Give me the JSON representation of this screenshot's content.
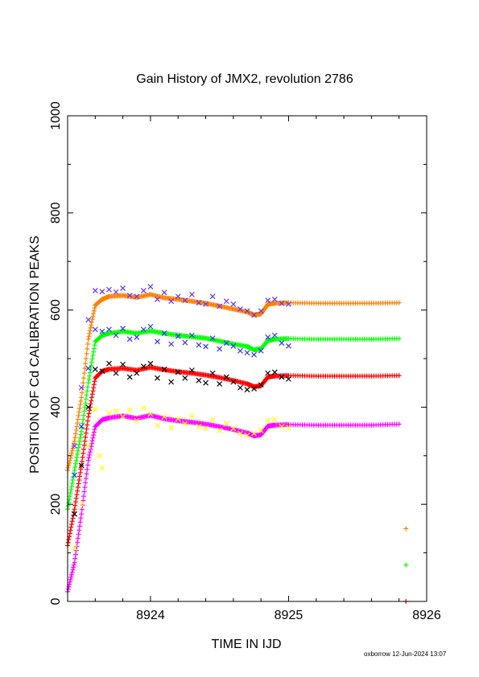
{
  "chart_data": {
    "type": "scatter",
    "title": "Gain History of JMX2, revolution 2786",
    "xlabel": "TIME IN IJD",
    "ylabel": "POSITION OF Cd CALIBRATION PEAKS",
    "xlim": [
      8923.4,
      8926.0
    ],
    "ylim": [
      0,
      1000
    ],
    "xticks": [
      8924,
      8925,
      8926
    ],
    "xtick_labels": [
      "8924",
      "8925",
      "8926"
    ],
    "yticks": [
      0,
      200,
      400,
      600,
      800,
      1000
    ],
    "ytick_labels": [
      "0",
      "200",
      "400",
      "600",
      "800",
      "1000"
    ],
    "grid": false,
    "legend": "none",
    "series": [
      {
        "color": "#ff8000",
        "marker": "plus",
        "x": [
          8923.4,
          8923.45,
          8923.5,
          8923.55,
          8923.6,
          8923.65,
          8923.7,
          8923.8,
          8923.9,
          8924.0,
          8924.1,
          8924.2,
          8924.3,
          8924.4,
          8924.5,
          8924.6,
          8924.7,
          8924.75,
          8924.8,
          8924.85,
          8924.9,
          8925.0,
          8925.2,
          8925.4,
          8925.6,
          8925.8
        ],
        "y": [
          270,
          330,
          420,
          540,
          610,
          622,
          628,
          630,
          626,
          632,
          625,
          622,
          618,
          614,
          608,
          602,
          596,
          590,
          592,
          612,
          614,
          615,
          614,
          614,
          614,
          615
        ]
      },
      {
        "color": "#00ff00",
        "marker": "plus",
        "x": [
          8923.4,
          8923.45,
          8923.5,
          8923.55,
          8923.6,
          8923.65,
          8923.7,
          8923.8,
          8923.9,
          8924.0,
          8924.1,
          8924.2,
          8924.3,
          8924.4,
          8924.5,
          8924.6,
          8924.7,
          8924.75,
          8924.8,
          8924.85,
          8924.9,
          8925.0,
          8925.2,
          8925.4,
          8925.6,
          8925.8
        ],
        "y": [
          190,
          270,
          350,
          450,
          535,
          548,
          552,
          556,
          552,
          557,
          552,
          548,
          545,
          542,
          536,
          530,
          525,
          518,
          520,
          537,
          540,
          541,
          540,
          540,
          540,
          541
        ]
      },
      {
        "color": "#ff0000",
        "marker": "plus",
        "x": [
          8923.4,
          8923.45,
          8923.5,
          8923.55,
          8923.6,
          8923.65,
          8923.7,
          8923.8,
          8923.9,
          8924.0,
          8924.1,
          8924.2,
          8924.3,
          8924.4,
          8924.5,
          8924.6,
          8924.7,
          8924.75,
          8924.8,
          8924.85,
          8924.9,
          8925.0,
          8925.2,
          8925.4,
          8925.6,
          8925.8
        ],
        "y": [
          115,
          190,
          280,
          380,
          460,
          474,
          478,
          480,
          476,
          482,
          477,
          473,
          470,
          466,
          461,
          455,
          448,
          442,
          444,
          462,
          464,
          465,
          464,
          464,
          464,
          465
        ]
      },
      {
        "color": "#ff00ff",
        "marker": "plus",
        "x": [
          8923.4,
          8923.45,
          8923.5,
          8923.55,
          8923.6,
          8923.65,
          8923.7,
          8923.8,
          8923.9,
          8924.0,
          8924.1,
          8924.2,
          8924.3,
          8924.4,
          8924.5,
          8924.6,
          8924.7,
          8924.75,
          8924.8,
          8924.85,
          8924.9,
          8925.0,
          8925.2,
          8925.4,
          8925.6,
          8925.8
        ],
        "y": [
          20,
          80,
          180,
          290,
          360,
          374,
          378,
          382,
          377,
          383,
          376,
          372,
          369,
          365,
          360,
          354,
          347,
          341,
          343,
          361,
          363,
          364,
          363,
          363,
          363,
          365
        ]
      },
      {
        "color": "#6633ff",
        "marker": "cross",
        "x": [
          8923.45,
          8923.5,
          8923.55,
          8923.6,
          8923.65,
          8923.7,
          8923.75,
          8923.8,
          8923.85,
          8923.9,
          8923.95,
          8924.0,
          8924.05,
          8924.1,
          8924.15,
          8924.2,
          8924.25,
          8924.3,
          8924.35,
          8924.4,
          8924.45,
          8924.5,
          8924.55,
          8924.6,
          8924.65,
          8924.7,
          8924.75,
          8924.8,
          8924.85,
          8924.9,
          8924.95,
          8925.0
        ],
        "y": [
          320,
          440,
          580,
          640,
          638,
          642,
          637,
          645,
          630,
          628,
          640,
          648,
          622,
          636,
          618,
          628,
          620,
          632,
          615,
          612,
          628,
          608,
          618,
          612,
          602,
          598,
          590,
          598,
          620,
          622,
          614,
          612
        ]
      },
      {
        "color": "#3333ff",
        "marker": "cross",
        "x": [
          8923.45,
          8923.5,
          8923.55,
          8923.6,
          8923.65,
          8923.7,
          8923.75,
          8923.8,
          8923.85,
          8923.9,
          8923.95,
          8924.0,
          8924.05,
          8924.1,
          8924.15,
          8924.2,
          8924.25,
          8924.3,
          8924.35,
          8924.4,
          8924.45,
          8924.5,
          8924.55,
          8924.6,
          8924.65,
          8924.7,
          8924.75,
          8924.8,
          8924.85,
          8924.9,
          8924.95,
          8925.0
        ],
        "y": [
          260,
          360,
          480,
          560,
          556,
          560,
          548,
          562,
          540,
          544,
          560,
          566,
          535,
          552,
          530,
          546,
          533,
          548,
          528,
          525,
          542,
          520,
          532,
          526,
          516,
          512,
          508,
          516,
          544,
          548,
          532,
          526
        ]
      },
      {
        "color": "#000000",
        "marker": "cross",
        "x": [
          8923.45,
          8923.5,
          8923.55,
          8923.6,
          8923.65,
          8923.7,
          8923.75,
          8923.8,
          8923.85,
          8923.9,
          8923.95,
          8924.0,
          8924.05,
          8924.1,
          8924.15,
          8924.2,
          8924.25,
          8924.3,
          8924.35,
          8924.4,
          8924.45,
          8924.5,
          8924.55,
          8924.6,
          8924.65,
          8924.7,
          8924.75,
          8924.8,
          8924.85,
          8924.9,
          8924.95,
          8925.0
        ],
        "y": [
          180,
          280,
          400,
          478,
          474,
          490,
          470,
          488,
          462,
          470,
          484,
          490,
          460,
          478,
          452,
          472,
          460,
          476,
          455,
          450,
          470,
          448,
          462,
          452,
          440,
          436,
          438,
          446,
          470,
          472,
          462,
          458
        ]
      },
      {
        "color": "#ffff00",
        "marker": "cross",
        "x": [
          8923.45,
          8923.5,
          8923.55,
          8923.6,
          8923.63,
          8923.65,
          8923.7,
          8923.75,
          8923.8,
          8923.85,
          8923.9,
          8923.95,
          8924.0,
          8924.05,
          8924.1,
          8924.15,
          8924.2,
          8924.25,
          8924.3,
          8924.35,
          8924.4,
          8924.45,
          8924.5,
          8924.55,
          8924.6,
          8924.65,
          8924.7,
          8924.75,
          8924.8,
          8924.85,
          8924.9,
          8924.95,
          8925.0
        ],
        "y": [
          110,
          200,
          320,
          395,
          300,
          275,
          388,
          392,
          380,
          394,
          372,
          398,
          386,
          362,
          380,
          358,
          376,
          366,
          381,
          360,
          356,
          374,
          352,
          366,
          356,
          346,
          342,
          346,
          352,
          372,
          375,
          360,
          358
        ]
      },
      {
        "color": "#ff8000",
        "marker": "plus",
        "x": [
          8925.85
        ],
        "y": [
          150
        ]
      },
      {
        "color": "#00ff00",
        "marker": "plus",
        "x": [
          8925.85
        ],
        "y": [
          75
        ]
      },
      {
        "color": "#ff0000",
        "marker": "plus",
        "x": [
          8925.85
        ],
        "y": [
          0
        ]
      }
    ]
  },
  "footer_text": "oxborrow 12-Jun-2024 13:07"
}
